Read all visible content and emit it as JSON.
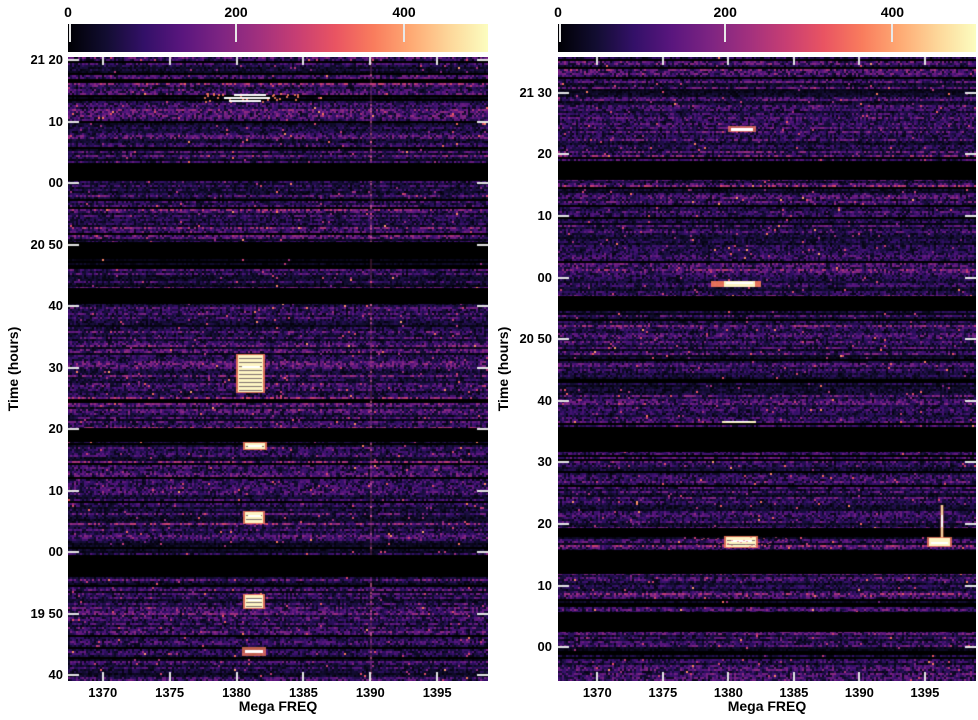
{
  "chart_data": {
    "type": "heatmap",
    "subtype": "dynamic-spectrum-waterfall",
    "colormap": "magma",
    "colors": {
      "background": "#ffffff",
      "label_color": "#000000",
      "gap_color": "#000000",
      "tick_color": "#e6e6e6",
      "bright_core": "#fdf4c3",
      "bright_white": "#ffffff",
      "bright_fringe": "#f97c5d",
      "faint_line_pink": "#e0559a",
      "colormap_stops": [
        "#000004",
        "#120d31",
        "#331068",
        "#5a167e",
        "#7d2482",
        "#a1307e",
        "#c73e73",
        "#e95462",
        "#f97c5d",
        "#feaa74",
        "#fdd79a",
        "#fcfdbf"
      ]
    },
    "colorbar": {
      "tick_labels": [
        "0",
        "200",
        "400"
      ],
      "tick_values": [
        0,
        200,
        400
      ],
      "value_range": [
        0,
        500
      ]
    },
    "x_axis": {
      "label": "Mega FREQ",
      "tick_labels": [
        "1370",
        "1375",
        "1380",
        "1385",
        "1390",
        "1395"
      ],
      "tick_values": [
        1370,
        1375,
        1380,
        1385,
        1390,
        1395
      ]
    },
    "y_axis": {
      "label": "Time (hours)"
    },
    "panels": [
      {
        "id": "left",
        "freq_range": [
          1367.4,
          1398.8
        ],
        "time_range_minutes": [
          1280.5,
          1179.1
        ],
        "y_ticks": [
          {
            "label": "21 20",
            "minutes": 1280
          },
          {
            "label": "10",
            "minutes": 1270
          },
          {
            "label": "00",
            "minutes": 1260
          },
          {
            "label": "20 50",
            "minutes": 1250
          },
          {
            "label": "40",
            "minutes": 1240
          },
          {
            "label": "30",
            "minutes": 1230
          },
          {
            "label": "20",
            "minutes": 1220
          },
          {
            "label": "10",
            "minutes": 1210
          },
          {
            "label": "00",
            "minutes": 1200
          },
          {
            "label": "19 50",
            "minutes": 1190
          },
          {
            "label": "40",
            "minutes": 1180
          }
        ],
        "gaps_minutes": [
          [
            1263.3,
            1260.3
          ],
          [
            1250.4,
            1247.7
          ],
          [
            1243.0,
            1240.4
          ],
          [
            1220.2,
            1217.9
          ],
          [
            1199.6,
            1196.0
          ]
        ],
        "features": [
          {
            "kind": "streak-multi",
            "time": [
              1274.6,
              1273.2
            ],
            "freq": [
              1379.1,
              1382.5
            ],
            "freq_fringe": [
              1377.6,
              1384.6
            ]
          },
          {
            "kind": "blob",
            "time": [
              1232.1,
              1226.1
            ],
            "freq": [
              1380.1,
              1382.0
            ]
          },
          {
            "kind": "blob",
            "time": [
              1217.8,
              1216.8
            ],
            "freq": [
              1380.6,
              1382.1
            ]
          },
          {
            "kind": "blob",
            "time": [
              1206.6,
              1204.8
            ],
            "freq": [
              1380.6,
              1382.0
            ]
          },
          {
            "kind": "blob",
            "time": [
              1193.1,
              1191.0
            ],
            "freq": [
              1380.6,
              1382.0
            ]
          },
          {
            "kind": "streak",
            "time": [
              1184.5,
              1183.4
            ],
            "freq": [
              1380.6,
              1382.0
            ]
          }
        ],
        "vertical_lines": [
          {
            "freq": 1390.0,
            "style": "faint-full-height"
          }
        ]
      },
      {
        "id": "right",
        "freq_range": [
          1367.0,
          1398.9
        ],
        "time_range_minutes": [
          1295.8,
          1194.5
        ],
        "y_ticks": [
          {
            "label": "21 30",
            "minutes": 1290
          },
          {
            "label": "20",
            "minutes": 1280
          },
          {
            "label": "10",
            "minutes": 1270
          },
          {
            "label": "00",
            "minutes": 1260
          },
          {
            "label": "20 50",
            "minutes": 1250
          },
          {
            "label": "40",
            "minutes": 1240
          },
          {
            "label": "30",
            "minutes": 1230
          },
          {
            "label": "20",
            "minutes": 1220
          },
          {
            "label": "10",
            "minutes": 1210
          },
          {
            "label": "00",
            "minutes": 1200
          }
        ],
        "gaps_minutes": [
          [
            1278.6,
            1275.9
          ],
          [
            1257.0,
            1254.6
          ],
          [
            1235.8,
            1231.7
          ],
          [
            1219.4,
            1217.9
          ],
          [
            1215.8,
            1211.9
          ],
          [
            1205.7,
            1202.5
          ]
        ],
        "features": [
          {
            "kind": "streak",
            "time": [
              1284.5,
              1283.8
            ],
            "freq": [
              1380.2,
              1381.9
            ]
          },
          {
            "kind": "streak-wide",
            "time": [
              1259.5,
              1258.5
            ],
            "freq": [
              1379.7,
              1382.0
            ],
            "freq_fringe": [
              1378.7,
              1382.5
            ]
          },
          {
            "kind": "streak-thin",
            "time": [
              1236.7,
              1236.1
            ],
            "freq": [
              1379.5,
              1382.1
            ]
          },
          {
            "kind": "blob-row",
            "time": [
              1217.8,
              1216.2
            ],
            "freq": [
              1379.8,
              1382.1
            ]
          },
          {
            "kind": "vline-seg",
            "time": [
              1223.1,
              1216.5
            ],
            "freq": [
              1396.2,
              1396.5
            ]
          },
          {
            "kind": "spot",
            "time": [
              1217.7,
              1216.4
            ],
            "freq": [
              1395.3,
              1396.9
            ]
          }
        ],
        "vertical_lines": []
      }
    ]
  }
}
